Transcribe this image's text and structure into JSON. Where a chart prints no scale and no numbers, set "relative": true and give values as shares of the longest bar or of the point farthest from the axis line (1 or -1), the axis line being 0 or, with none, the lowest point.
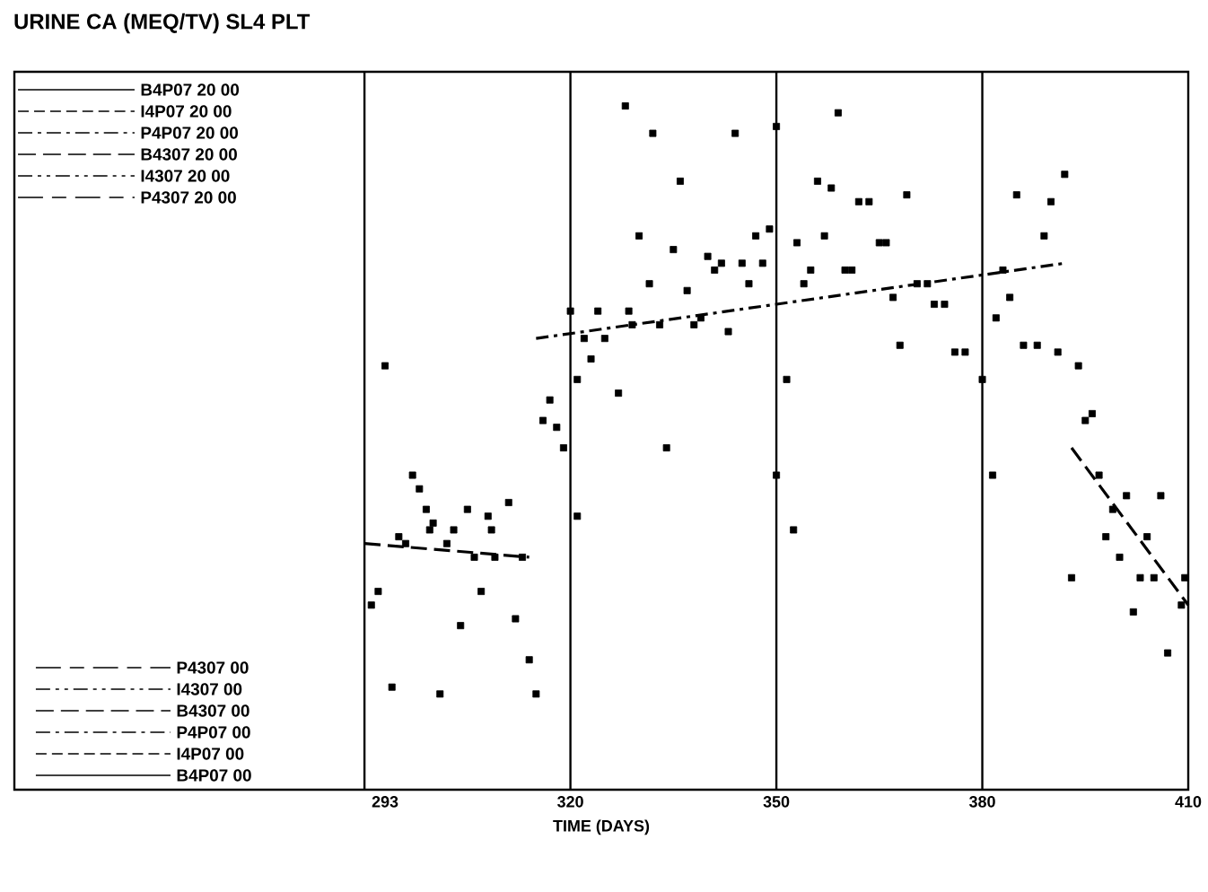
{
  "chart_data": {
    "type": "scatter",
    "title": "URINE CA (MEQ/TV) SL4 PLT",
    "xlabel": "TIME (DAYS)",
    "relative": true,
    "xlim": [
      239,
      410
    ],
    "xticks": [
      293,
      320,
      350,
      380,
      410
    ],
    "series": [
      {
        "marker": "square",
        "color": "#000000",
        "x": [
          328,
          332,
          344,
          350,
          336,
          330,
          335,
          340,
          341,
          342,
          345,
          348,
          347,
          349,
          346,
          331.5,
          337,
          320,
          324,
          328.5,
          322,
          325,
          329,
          333,
          338,
          339,
          343,
          323,
          321,
          327,
          293,
          317,
          316,
          318,
          359,
          356,
          358,
          362,
          363.5,
          369,
          357,
          353,
          365,
          366,
          355,
          360,
          361,
          354,
          370.5,
          372,
          367,
          373,
          374.5,
          368,
          376,
          377.5,
          380,
          351.5,
          385,
          392,
          390,
          389,
          383,
          384,
          382,
          386,
          388,
          391,
          394,
          396,
          395,
          319,
          334,
          321,
          297,
          298,
          299,
          305,
          308,
          311,
          300,
          299.5,
          303,
          308.5,
          295,
          296,
          302,
          306,
          309,
          313,
          292,
          291,
          307,
          312,
          304,
          314,
          294,
          301,
          315,
          350,
          352.5,
          381.5,
          397,
          401,
          406,
          399,
          398,
          404,
          400,
          403,
          405,
          409.5,
          393,
          409,
          402,
          407
        ],
        "values": [
          1.0,
          0.96,
          0.96,
          0.97,
          0.89,
          0.81,
          0.79,
          0.78,
          0.76,
          0.77,
          0.77,
          0.77,
          0.81,
          0.82,
          0.74,
          0.74,
          0.73,
          0.7,
          0.7,
          0.7,
          0.66,
          0.66,
          0.68,
          0.68,
          0.68,
          0.69,
          0.67,
          0.63,
          0.6,
          0.58,
          0.62,
          0.57,
          0.54,
          0.53,
          0.99,
          0.89,
          0.88,
          0.86,
          0.86,
          0.87,
          0.81,
          0.8,
          0.8,
          0.8,
          0.76,
          0.76,
          0.76,
          0.74,
          0.74,
          0.74,
          0.72,
          0.71,
          0.71,
          0.65,
          0.64,
          0.64,
          0.6,
          0.6,
          0.87,
          0.9,
          0.86,
          0.81,
          0.76,
          0.72,
          0.69,
          0.65,
          0.65,
          0.64,
          0.62,
          0.55,
          0.54,
          0.5,
          0.5,
          0.4,
          0.46,
          0.44,
          0.41,
          0.41,
          0.4,
          0.42,
          0.39,
          0.38,
          0.38,
          0.38,
          0.37,
          0.36,
          0.36,
          0.34,
          0.34,
          0.34,
          0.29,
          0.27,
          0.29,
          0.25,
          0.24,
          0.19,
          0.15,
          0.14,
          0.14,
          0.46,
          0.38,
          0.46,
          0.46,
          0.43,
          0.43,
          0.41,
          0.37,
          0.37,
          0.34,
          0.31,
          0.31,
          0.31,
          0.31,
          0.27,
          0.26,
          0.2
        ]
      },
      {
        "type": "line",
        "line_style": "dashed",
        "color": "#000000",
        "x": [
          290,
          314
        ],
        "values": [
          0.36,
          0.34
        ]
      },
      {
        "type": "line",
        "line_style": "dashdot",
        "color": "#000000",
        "x": [
          315,
          392
        ],
        "values": [
          0.66,
          0.77
        ]
      },
      {
        "type": "line",
        "line_style": "dashed",
        "color": "#000000",
        "x": [
          393,
          410
        ],
        "values": [
          0.5,
          0.27
        ]
      }
    ],
    "ref_lines": [
      {
        "axis": "x",
        "value": 290
      },
      {
        "axis": "x",
        "value": 320
      },
      {
        "axis": "x",
        "value": 350
      },
      {
        "axis": "x",
        "value": 380
      }
    ],
    "annotations": [
      "B4P07  20 00",
      "I4P07  20 00",
      "P4P07 20 00",
      "B4307  20 00",
      "I4307  20 00",
      "P4307  20 00",
      "P4307  00",
      "I4307  00",
      "B4307  00",
      "P4P07  00",
      "I4P07  00",
      "B4P07  00"
    ]
  }
}
